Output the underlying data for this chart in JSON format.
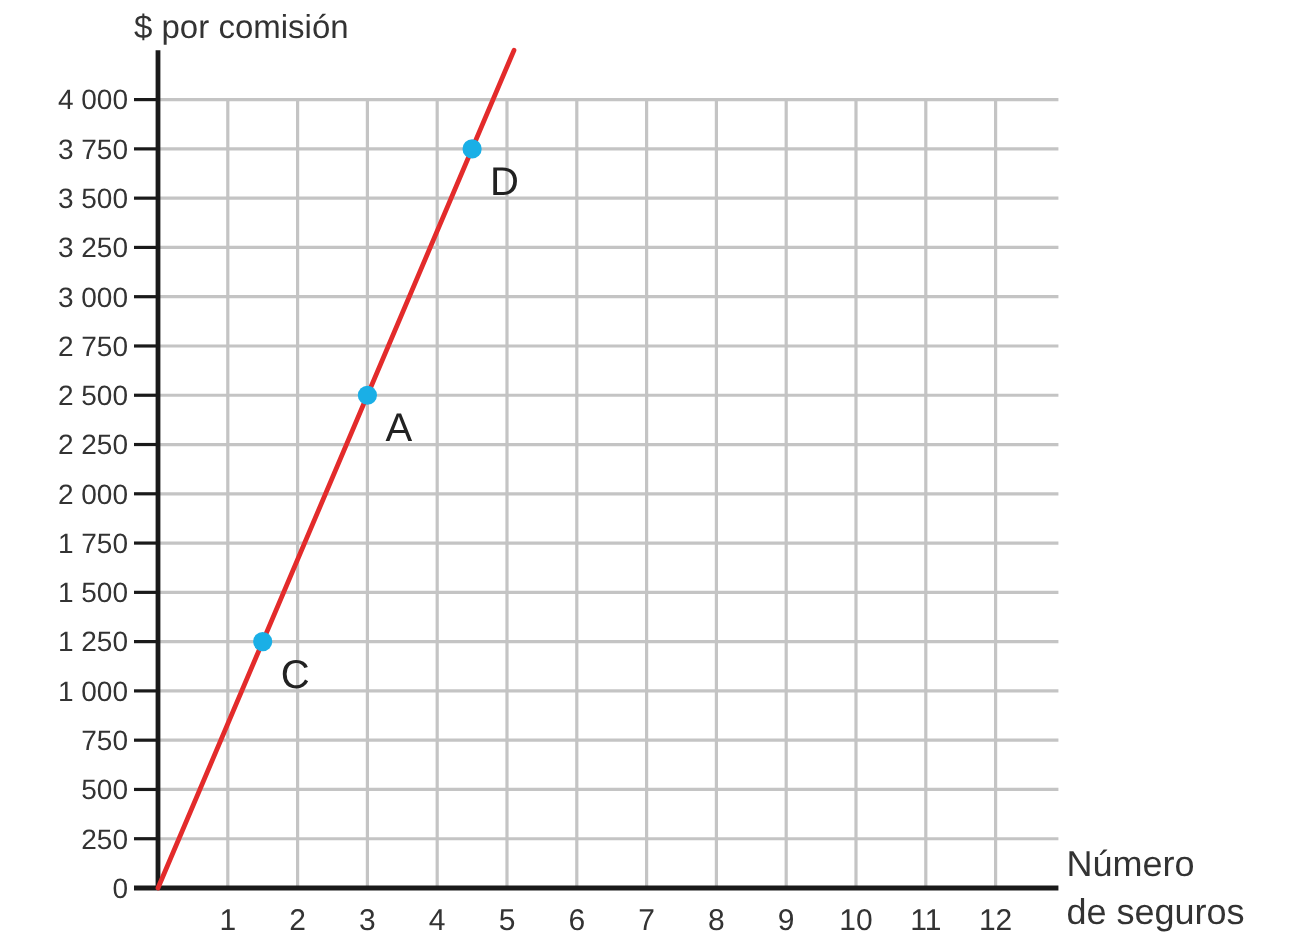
{
  "chart_data": {
    "type": "line",
    "xlabel": "Número de seguros",
    "ylabel": "$ por comisión",
    "xlim": [
      0,
      12.9
    ],
    "ylim": [
      0,
      4250
    ],
    "xticks": [
      1,
      2,
      3,
      4,
      5,
      6,
      7,
      8,
      9,
      10,
      11,
      12
    ],
    "yticks": [
      0,
      250,
      500,
      750,
      {
        "value": 1000,
        "label": "1 000"
      },
      {
        "value": 1250,
        "label": "1 250"
      },
      {
        "value": 1500,
        "label": "1 500"
      },
      {
        "value": 1750,
        "label": "1 750"
      },
      {
        "value": 2000,
        "label": "2 000"
      },
      {
        "value": 2250,
        "label": "2 250"
      },
      {
        "value": 2500,
        "label": "2 500"
      },
      {
        "value": 2750,
        "label": "2 750"
      },
      {
        "value": 3000,
        "label": "3 000"
      },
      {
        "value": 3250,
        "label": "3 250"
      },
      {
        "value": 3500,
        "label": "3 500"
      },
      {
        "value": 3750,
        "label": "3 750"
      },
      {
        "value": 4000,
        "label": "4 000"
      }
    ],
    "grid": true,
    "series": [
      {
        "color": "#e32b2b",
        "x": [
          0,
          5.1
        ],
        "values": [
          0,
          4250
        ],
        "marker": "none"
      },
      {
        "type": "scatter",
        "color": "#1aafe6",
        "x": [
          1.5,
          3,
          4.5
        ],
        "values": [
          1250,
          2500,
          3750
        ],
        "marker": "circle"
      }
    ],
    "annotations": [
      {
        "text": "C",
        "x": 1.5,
        "y": 1250
      },
      {
        "text": "A",
        "x": 3,
        "y": 2500
      },
      {
        "text": "D",
        "x": 4.5,
        "y": 3750
      }
    ]
  }
}
